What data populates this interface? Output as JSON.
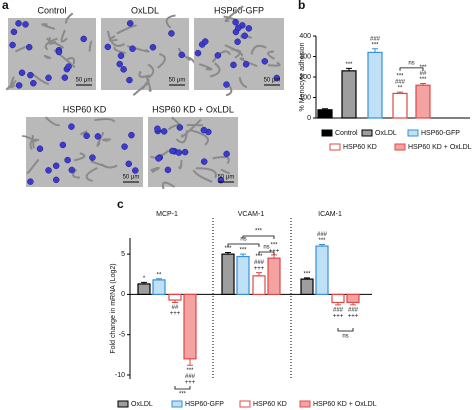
{
  "panel_a": {
    "label": "a",
    "images": [
      {
        "label": "Control",
        "scale": "50 μm"
      },
      {
        "label": "OxLDL",
        "scale": "50 μm"
      },
      {
        "label": "HSP60-GFP",
        "scale": "50 μm"
      },
      {
        "label": "HSP60 KD",
        "scale": "50 μm"
      },
      {
        "label": "HSP60 KD + OxLDL",
        "scale": "50 μm"
      }
    ]
  },
  "chart_data": [
    {
      "type": "bar",
      "panel": "b",
      "ylabel": "% Monocyte adhesion",
      "categories": [
        "Control",
        "OxLDL",
        "HSP60-GFP",
        "HSP60 KD",
        "HSP60 KD + OxLDL"
      ],
      "values": [
        40,
        230,
        320,
        120,
        160
      ],
      "errors": [
        5,
        12,
        18,
        6,
        8
      ],
      "colors": [
        "#000000",
        "#9e9e9e",
        "#bfe0f7",
        "#ffffff",
        "#f4a3a3"
      ],
      "strokes": [
        "#000000",
        "#000000",
        "#3a8fd6",
        "#e04848",
        "#e04848"
      ],
      "annotations": [
        [],
        [
          "***"
        ],
        [
          "###",
          "***"
        ],
        [
          "***",
          "###",
          "**"
        ],
        [
          "***",
          "##",
          "***"
        ]
      ],
      "brackets": [
        "ns"
      ],
      "ylim": [
        0,
        400
      ],
      "yticks": [
        0,
        100,
        200,
        300,
        400
      ]
    },
    {
      "type": "grouped_bar",
      "panel": "c",
      "ylabel": "Fold change in mRNA (Log2)",
      "categories": [
        "MCP-1",
        "VCAM-1",
        "ICAM-1"
      ],
      "series": [
        {
          "name": "OxLDL",
          "color": "#9e9e9e",
          "stroke": "#000000",
          "values": [
            1.3,
            5.0,
            1.9
          ],
          "errors": [
            0.2,
            0.2,
            0.15
          ],
          "annotations": [
            [
              "*"
            ],
            [
              "***"
            ],
            [
              "***"
            ]
          ]
        },
        {
          "name": "HSP60-GFP",
          "color": "#bfe0f7",
          "stroke": "#3a8fd6",
          "values": [
            1.8,
            4.7,
            6.0
          ],
          "errors": [
            0.15,
            0.3,
            0.2
          ],
          "annotations": [
            [
              "**"
            ],
            [
              "***"
            ],
            [
              "###",
              "***"
            ]
          ]
        },
        {
          "name": "HSP60 KD",
          "color": "#ffffff",
          "stroke": "#e04848",
          "values": [
            -0.7,
            2.3,
            -1.0
          ],
          "errors": [
            0.3,
            0.4,
            0.3
          ],
          "annotations": [
            [
              "##",
              "+++"
            ],
            [
              "***",
              "###",
              "+++"
            ],
            [
              "###",
              "+++"
            ]
          ]
        },
        {
          "name": "HSP60 KD + OxLDL",
          "color": "#f4a3a3",
          "stroke": "#e04848",
          "values": [
            -8.0,
            4.5,
            -1.0
          ],
          "errors": [
            0.8,
            0.4,
            0.3
          ],
          "annotations": [
            [
              "***",
              "###",
              "+++"
            ],
            [
              "***",
              "+++"
            ],
            [
              "###",
              "+++"
            ]
          ]
        }
      ],
      "brackets": [
        "***",
        "ns",
        "ns",
        "***",
        "ns"
      ],
      "ylim": [
        -10.5,
        7
      ],
      "yticks": [
        -10,
        -5,
        0,
        5
      ]
    }
  ]
}
